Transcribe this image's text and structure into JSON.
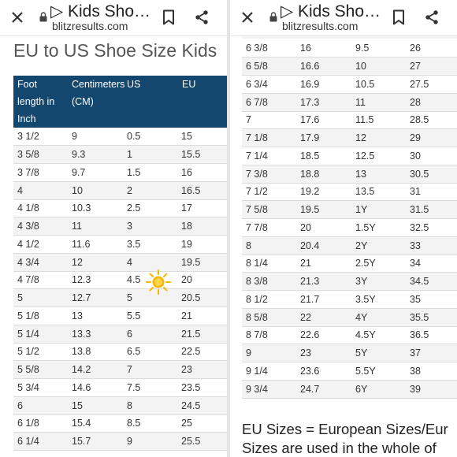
{
  "left": {
    "title": "▷ Kids Sho…",
    "url": "blitzresults.com",
    "heading": "EU to US Shoe Size Kids",
    "headers": {
      "foot_l1": "Foot",
      "foot_l2": "length in",
      "foot_l3": "Inch",
      "cm_l1": "Centimeters",
      "cm_l2": "(CM)",
      "us": "US",
      "eu": "EU"
    },
    "rows": [
      [
        "3 1/2",
        "9",
        "0.5",
        "15"
      ],
      [
        "3 5/8",
        "9.3",
        "1",
        "15.5"
      ],
      [
        "3 7/8",
        "9.7",
        "1.5",
        "16"
      ],
      [
        "4",
        "10",
        "2",
        "16.5"
      ],
      [
        "4 1/8",
        "10.3",
        "2.5",
        "17"
      ],
      [
        "4 3/8",
        "11",
        "3",
        "18"
      ],
      [
        "4 1/2",
        "11.6",
        "3.5",
        "19"
      ],
      [
        "4 3/4",
        "12",
        "4",
        "19.5"
      ],
      [
        "4 7/8",
        "12.3",
        "4.5",
        "20"
      ],
      [
        "5",
        "12.7",
        "5",
        "20.5"
      ],
      [
        "5 1/8",
        "13",
        "5.5",
        "21"
      ],
      [
        "5 1/4",
        "13.3",
        "6",
        "21.5"
      ],
      [
        "5 1/2",
        "13.8",
        "6.5",
        "22.5"
      ],
      [
        "5 5/8",
        "14.2",
        "7",
        "23"
      ],
      [
        "5 3/4",
        "14.6",
        "7.5",
        "23.5"
      ],
      [
        "6",
        "15",
        "8",
        "24.5"
      ],
      [
        "6 1/8",
        "15.4",
        "8.5",
        "25"
      ],
      [
        "6 1/4",
        "15.7",
        "9",
        "25.5"
      ]
    ]
  },
  "right": {
    "title": "▷ Kids Sho…",
    "url": "blitzresults.com",
    "rows": [
      [
        "6 3/8",
        "16",
        "9.5",
        "26"
      ],
      [
        "6 5/8",
        "16.6",
        "10",
        "27"
      ],
      [
        "6 3/4",
        "16.9",
        "10.5",
        "27.5"
      ],
      [
        "6 7/8",
        "17.3",
        "11",
        "28"
      ],
      [
        "7",
        "17.6",
        "11.5",
        "28.5"
      ],
      [
        "7 1/8",
        "17.9",
        "12",
        "29"
      ],
      [
        "7 1/4",
        "18.5",
        "12.5",
        "30"
      ],
      [
        "7 3/8",
        "18.8",
        "13",
        "30.5"
      ],
      [
        "7 1/2",
        "19.2",
        "13.5",
        "31"
      ],
      [
        "7 5/8",
        "19.5",
        "1Y",
        "31.5"
      ],
      [
        "7 7/8",
        "20",
        "1.5Y",
        "32.5"
      ],
      [
        "8",
        "20.4",
        "2Y",
        "33"
      ],
      [
        "8 1/4",
        "21",
        "2.5Y",
        "34"
      ],
      [
        "8 3/8",
        "21.3",
        "3Y",
        "34.5"
      ],
      [
        "8 1/2",
        "21.7",
        "3.5Y",
        "35"
      ],
      [
        "8 5/8",
        "22",
        "4Y",
        "35.5"
      ],
      [
        "8 7/8",
        "22.6",
        "4.5Y",
        "36.5"
      ],
      [
        "9",
        "23",
        "5Y",
        "37"
      ],
      [
        "9 1/4",
        "23.6",
        "5.5Y",
        "38"
      ],
      [
        "9 3/4",
        "24.7",
        "6Y",
        "39"
      ]
    ],
    "footer_line1": "EU Sizes = European Sizes/Eur",
    "footer_line2": "Sizes are used in the whole of"
  },
  "colors": {
    "header_bg": "#14476e",
    "row_alt": "#f3f3f3",
    "sun": "#f5b800"
  },
  "icons": [
    "close-icon",
    "lock-icon",
    "bookmark-icon",
    "share-icon",
    "sun-icon"
  ]
}
